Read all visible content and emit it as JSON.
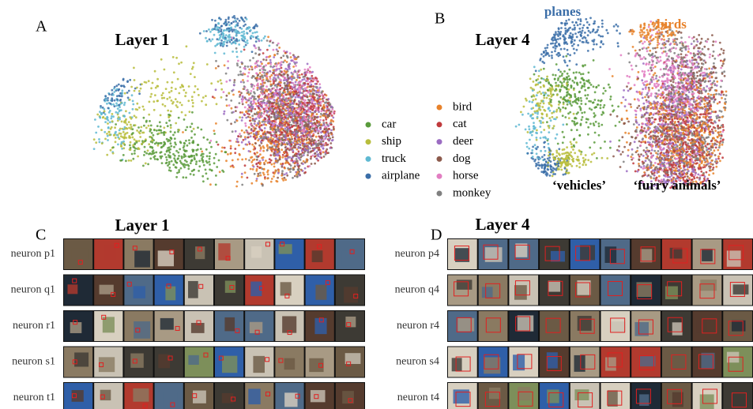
{
  "panels": [
    {
      "letter": "A",
      "title": "Layer 1"
    },
    {
      "letter": "B",
      "title": "Layer 4"
    }
  ],
  "legend": [
    {
      "name": "car",
      "color": "#5a9b3c"
    },
    {
      "name": "ship",
      "color": "#b8bd3c"
    },
    {
      "name": "truck",
      "color": "#5fb9d2"
    },
    {
      "name": "airplane",
      "color": "#3b6ea8"
    },
    {
      "name": "bird",
      "color": "#e8822a"
    },
    {
      "name": "cat",
      "color": "#c03a3c"
    },
    {
      "name": "deer",
      "color": "#9b6cc2"
    },
    {
      "name": "dog",
      "color": "#8c5a4c"
    },
    {
      "name": "horse",
      "color": "#e27ec2"
    },
    {
      "name": "monkey",
      "color": "#808080"
    }
  ],
  "annotations": [
    {
      "text": "planes",
      "color": "#3b6ea8"
    },
    {
      "text": "birds",
      "color": "#e8822a"
    },
    {
      "text": "‘vehicles’",
      "color": "#000000"
    },
    {
      "text": "‘furry animals’",
      "color": "#000000"
    }
  ],
  "grids": [
    {
      "letter": "C",
      "title": "Layer 1",
      "rows": [
        "neuron p1",
        "neuron q1",
        "neuron r1",
        "neuron s1",
        "neuron t1"
      ]
    },
    {
      "letter": "D",
      "title": "Layer 4",
      "rows": [
        "neuron p4",
        "neuron q4",
        "neuron r4",
        "neuron s4",
        "neuron t4"
      ]
    }
  ]
}
